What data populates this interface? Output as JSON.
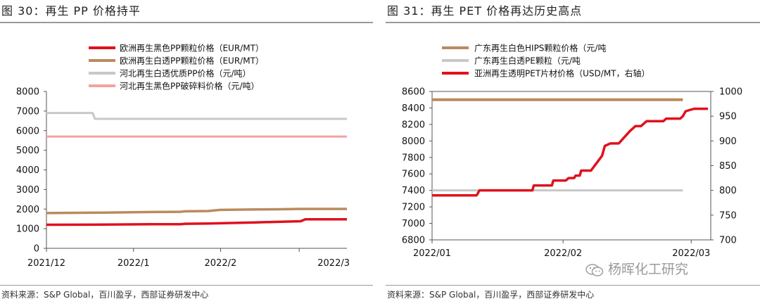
{
  "left": {
    "title": "图 30：再生 PP 价格持平",
    "source": "资料来源：S&P Global，百川盈孚，西部证券研发中心",
    "chart_data": {
      "type": "line",
      "title": "图 30：再生 PP 价格持平",
      "x_tick_labels": [
        "2021/12",
        "2022/1",
        "2022/2",
        "2022/3"
      ],
      "y_ticks": [
        0,
        1000,
        2000,
        3000,
        4000,
        5000,
        6000,
        7000,
        8000
      ],
      "ylim": [
        0,
        8000
      ],
      "x_range_days": [
        0,
        107
      ],
      "series": [
        {
          "name": "欧洲再生黑色PP颗粒价格（EUR/MT）",
          "color": "#e0111c",
          "width": 3.5,
          "points": [
            [
              0,
              1200
            ],
            [
              25,
              1210
            ],
            [
              45,
              1230
            ],
            [
              58,
              1230
            ],
            [
              60,
              1250
            ],
            [
              70,
              1265
            ],
            [
              90,
              1320
            ],
            [
              100,
              1350
            ],
            [
              110,
              1380
            ],
            [
              112,
              1480
            ],
            [
              130,
              1480
            ]
          ]
        },
        {
          "name": "欧洲再生白透PP颗粒价格（EUR/MT）",
          "color": "#b98b5e",
          "width": 3.5,
          "points": [
            [
              0,
              1800
            ],
            [
              25,
              1820
            ],
            [
              45,
              1850
            ],
            [
              58,
              1860
            ],
            [
              60,
              1890
            ],
            [
              70,
              1900
            ],
            [
              75,
              1960
            ],
            [
              90,
              1980
            ],
            [
              100,
              1990
            ],
            [
              110,
              2010
            ],
            [
              130,
              2010
            ]
          ]
        },
        {
          "name": "河北再生白透优质PP价格（元/吨）",
          "color": "#c8c8c8",
          "width": 3,
          "points": [
            [
              0,
              6900
            ],
            [
              20,
              6900
            ],
            [
              21,
              6600
            ],
            [
              130,
              6600
            ]
          ]
        },
        {
          "name": "河北再生黑色PP破碎料价格（元/吨）",
          "color": "#f2a39f",
          "width": 3,
          "points": [
            [
              0,
              5700
            ],
            [
              130,
              5700
            ]
          ]
        }
      ]
    }
  },
  "right": {
    "title": "图 31：再生 PET 价格再达历史高点",
    "source": "资料来源：S&P Global，百川盈孚，西部证券研发中心",
    "chart_data": {
      "type": "line",
      "title": "图 31：再生 PET 价格再达历史高点",
      "x_tick_labels": [
        "2022/01",
        "2022/02",
        "2022/03"
      ],
      "y_left_ticks": [
        6800,
        7000,
        7200,
        7400,
        7600,
        7800,
        8000,
        8200,
        8400,
        8600
      ],
      "ylim_left": [
        6800,
        8600
      ],
      "y_right_ticks": [
        700,
        750,
        800,
        850,
        900,
        950,
        1000
      ],
      "ylim_right": [
        700,
        1000
      ],
      "series": [
        {
          "name": "广东再生白色HIPS颗粒价格（元/吨",
          "axis": "left",
          "color": "#b98b5e",
          "width": 4,
          "points": [
            [
              0,
              8500
            ],
            [
              90,
              8500
            ]
          ]
        },
        {
          "name": "广东再生白透PE颗粒（元/吨",
          "axis": "left",
          "color": "#c8c8c8",
          "width": 3,
          "points": [
            [
              0,
              7400
            ],
            [
              90,
              7400
            ]
          ]
        },
        {
          "name": "亚洲再生透明PET片材价格（USD/MT，右轴）",
          "axis": "right",
          "color": "#e0111c",
          "width": 3.5,
          "points": [
            [
              0,
              790
            ],
            [
              16,
              790
            ],
            [
              17,
              800
            ],
            [
              36,
              800
            ],
            [
              36.5,
              810
            ],
            [
              43,
              810
            ],
            [
              43.5,
              820
            ],
            [
              48,
              820
            ],
            [
              49,
              825
            ],
            [
              51,
              825
            ],
            [
              51.5,
              830
            ],
            [
              53,
              830
            ],
            [
              53.5,
              840
            ],
            [
              57,
              840
            ],
            [
              61,
              870
            ],
            [
              62,
              890
            ],
            [
              64,
              895
            ],
            [
              67,
              895
            ],
            [
              71,
              920
            ],
            [
              73,
              930
            ],
            [
              75,
              930
            ],
            [
              77,
              940
            ],
            [
              83,
              940
            ],
            [
              84,
              945
            ],
            [
              89,
              945
            ],
            [
              90,
              950
            ],
            [
              91,
              960
            ],
            [
              94,
              965
            ],
            [
              97,
              965
            ],
            [
              99,
              965
            ]
          ]
        }
      ]
    }
  },
  "watermark": {
    "icon": "wechat-icon",
    "text": "杨晖化工研究"
  }
}
